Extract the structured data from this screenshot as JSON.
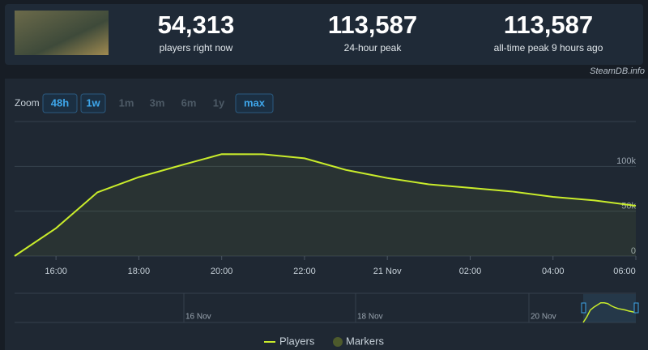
{
  "stats": [
    {
      "value": "54,313",
      "label": "players right now"
    },
    {
      "value": "113,587",
      "label": "24-hour peak"
    },
    {
      "value": "113,587",
      "label": "all-time peak 9 hours ago"
    }
  ],
  "credit": "SteamDB.info",
  "zoom": {
    "label": "Zoom",
    "buttons": [
      {
        "label": "48h",
        "active": true
      },
      {
        "label": "1w",
        "active": true
      },
      {
        "label": "1m",
        "active": false
      },
      {
        "label": "3m",
        "active": false
      },
      {
        "label": "6m",
        "active": false
      },
      {
        "label": "1y",
        "active": false
      },
      {
        "label": "max",
        "active": true
      }
    ]
  },
  "navigator": {
    "labels": [
      "16 Nov",
      "18 Nov",
      "20 Nov"
    ]
  },
  "chart_data": {
    "type": "line",
    "x": [
      15,
      16,
      17,
      18,
      19,
      20,
      21,
      22,
      23,
      24,
      25,
      26,
      27,
      28,
      29,
      30
    ],
    "series": [
      {
        "name": "Players",
        "color": "#c9ec2b",
        "values": [
          0,
          31000,
          71000,
          88000,
          101000,
          113587,
          113500,
          109000,
          96000,
          87000,
          80000,
          76000,
          72000,
          66000,
          62000,
          56000
        ]
      }
    ],
    "markers_label": "Markers",
    "markers_color": "#4d5a2c",
    "xlim": [
      15,
      30
    ],
    "xticks": [
      {
        "value": 16,
        "label": "16:00"
      },
      {
        "value": 18,
        "label": "18:00"
      },
      {
        "value": 20,
        "label": "20:00"
      },
      {
        "value": 22,
        "label": "22:00"
      },
      {
        "value": 24,
        "label": "21 Nov"
      },
      {
        "value": 26,
        "label": "02:00"
      },
      {
        "value": 28,
        "label": "04:00"
      },
      {
        "value": 30,
        "label": "06:00"
      }
    ],
    "ylim": [
      0,
      150000
    ],
    "yticks": [
      {
        "value": 0,
        "label": "0"
      },
      {
        "value": 50000,
        "label": "50k"
      },
      {
        "value": 100000,
        "label": "100k"
      }
    ],
    "grid": true
  }
}
